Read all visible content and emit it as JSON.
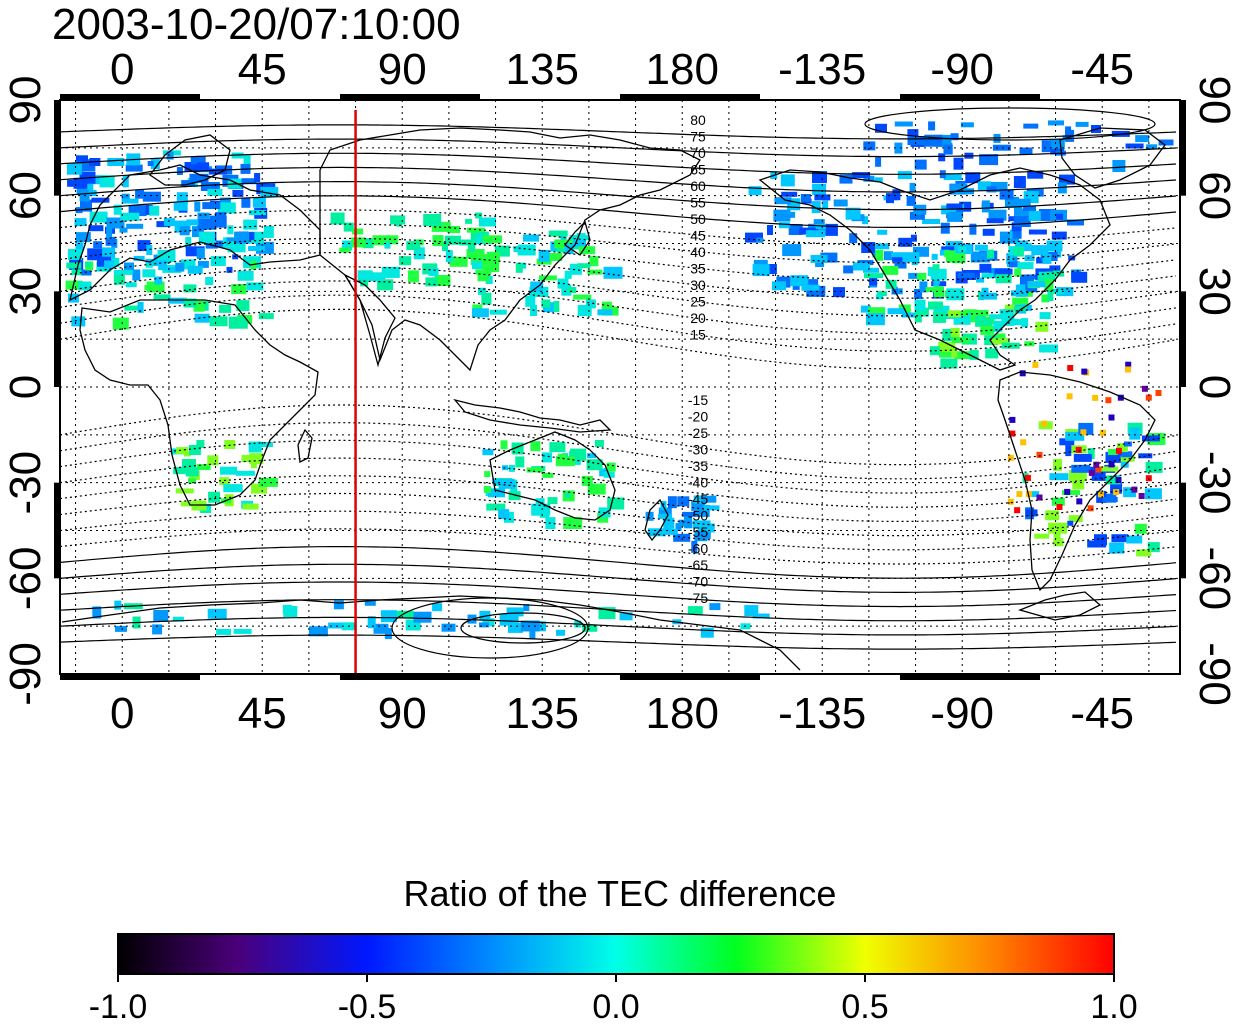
{
  "title": "2003-10-20/07:10:00",
  "map": {
    "lon_ticks": [
      0,
      45,
      90,
      135,
      180,
      -135,
      -90,
      -45
    ],
    "lat_ticks": [
      90,
      60,
      30,
      0,
      -30,
      -60,
      -90
    ],
    "meridian_marker_lon": 75,
    "contour_labels_north": [
      "80",
      "75",
      "70",
      "65",
      "60",
      "55",
      "50",
      "45",
      "40",
      "35",
      "30",
      "25",
      "20",
      "15"
    ],
    "contour_labels_south": [
      "-15",
      "-20",
      "-25",
      "-30",
      "-35",
      "-40",
      "-45",
      "-50",
      "-55",
      "-60",
      "-65",
      "-70",
      "-75"
    ],
    "marker_color": "#e00000"
  },
  "colorbar": {
    "label": "Ratio of the TEC difference",
    "ticks": [
      "-1.0",
      "-0.5",
      "0.0",
      "0.5",
      "1.0"
    ],
    "range": [
      -1.0,
      1.0
    ]
  }
}
